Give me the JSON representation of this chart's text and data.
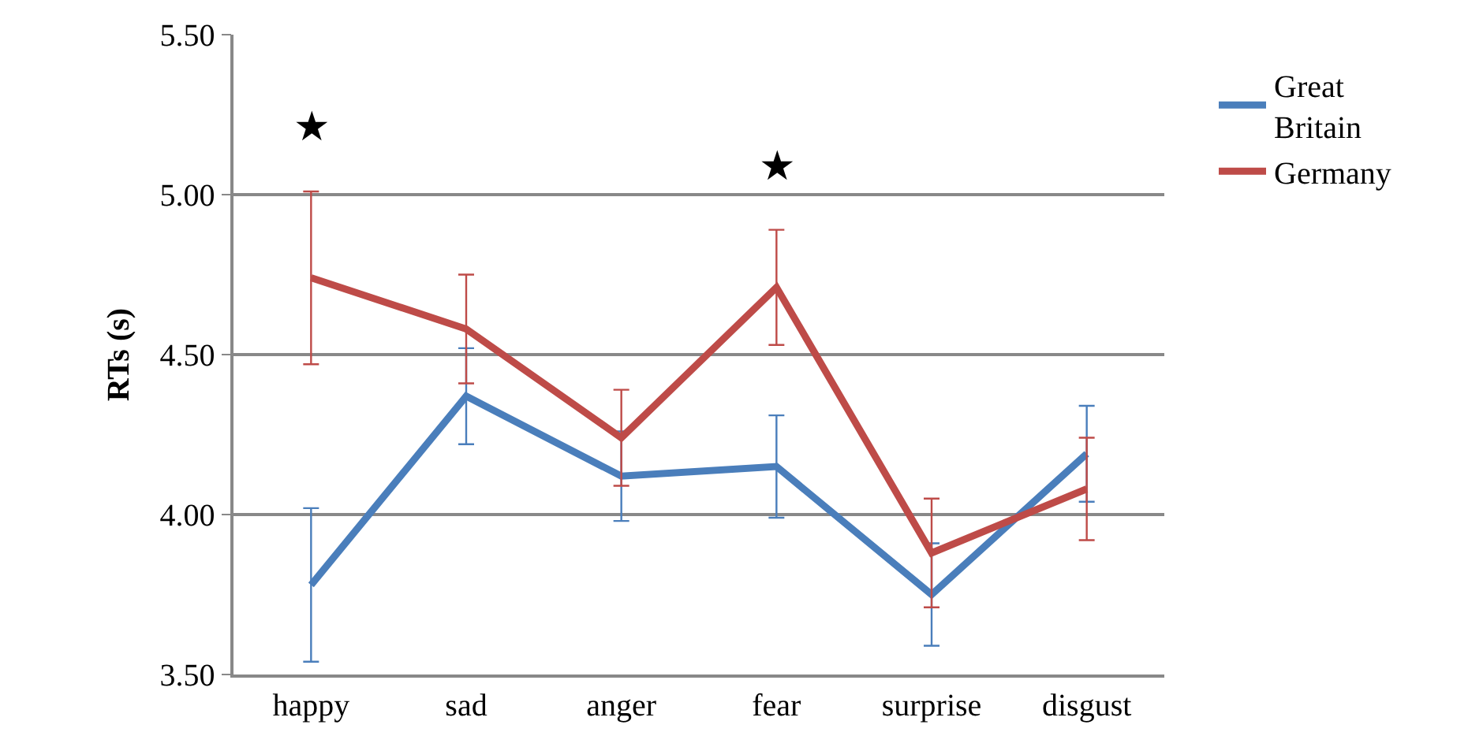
{
  "chart_data": {
    "type": "line",
    "ylabel": "RTs (s)",
    "categories": [
      "happy",
      "sad",
      "anger",
      "fear",
      "surprise",
      "disgust"
    ],
    "series": [
      {
        "name": "Great Britain",
        "color": "#4a7ebb",
        "values": [
          3.78,
          4.37,
          4.12,
          4.15,
          3.75,
          4.19
        ],
        "errors": [
          0.24,
          0.15,
          0.14,
          0.16,
          0.16,
          0.15
        ]
      },
      {
        "name": "Germany",
        "color": "#be4b48",
        "values": [
          4.74,
          4.58,
          4.24,
          4.71,
          3.88,
          4.08
        ],
        "errors": [
          0.27,
          0.17,
          0.15,
          0.18,
          0.17,
          0.16
        ]
      }
    ],
    "ylim": [
      3.5,
      5.5
    ],
    "yticks": [
      {
        "value": 3.5,
        "label": "3.50"
      },
      {
        "value": 4.0,
        "label": "4.00"
      },
      {
        "value": 4.5,
        "label": "4.50"
      },
      {
        "value": 5.0,
        "label": "5.00"
      },
      {
        "value": 5.5,
        "label": "5.50"
      }
    ],
    "annotations": [
      "★",
      "★"
    ],
    "grid": "y",
    "legend": "top right",
    "marker": "none",
    "line_style": "solid"
  }
}
